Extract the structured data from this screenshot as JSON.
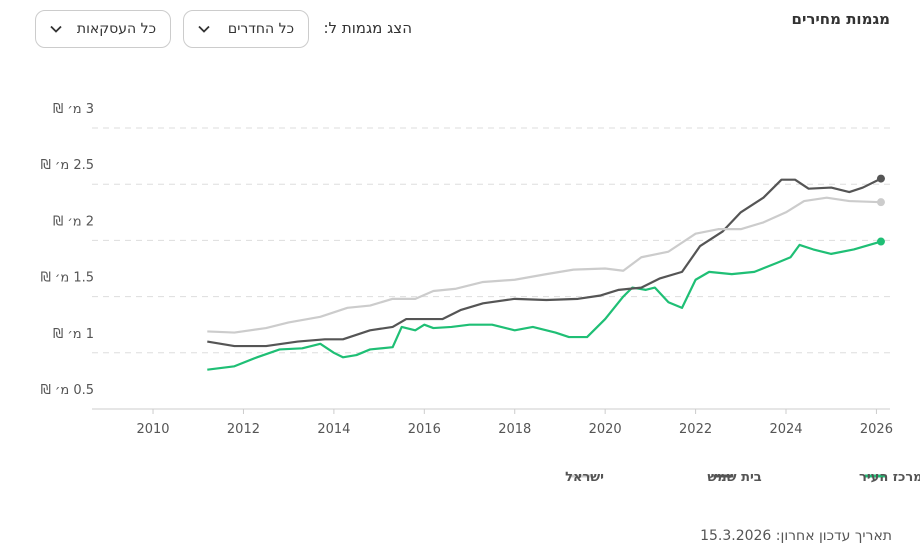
{
  "header": {
    "title": "מגמות מחירים",
    "filter_label": "הצג מגמות ל:",
    "rooms_dropdown": "כל החדרים",
    "deals_dropdown": "כל העסקאות"
  },
  "chart_data": {
    "type": "line",
    "xlim": [
      2008.65,
      2026.3
    ],
    "xticks": [
      2010,
      2012,
      2014,
      2016,
      2018,
      2020,
      2022,
      2024,
      2026
    ],
    "ylim": [
      0.5,
      3
    ],
    "yticks": [
      {
        "value": 0.5,
        "label": "0.5 מ׳ ₪"
      },
      {
        "value": 1,
        "label": "1 מ׳ ₪"
      },
      {
        "value": 1.5,
        "label": "1.5 מ׳ ₪"
      },
      {
        "value": 2,
        "label": "2 מ׳ ₪"
      },
      {
        "value": 2.5,
        "label": "2.5 מ׳ ₪"
      },
      {
        "value": 3,
        "label": "3 מ׳ ₪"
      }
    ],
    "grid": true,
    "series": [
      {
        "name": "מרכז העיר",
        "color": "#1fbf75",
        "x": [
          2011.2,
          2011.8,
          2012.3,
          2012.8,
          2013.3,
          2013.7,
          2014.0,
          2014.2,
          2014.5,
          2014.8,
          2015.3,
          2015.5,
          2015.8,
          2016.0,
          2016.2,
          2016.6,
          2017.0,
          2017.5,
          2018.0,
          2018.4,
          2018.9,
          2019.2,
          2019.6,
          2020.0,
          2020.4,
          2020.6,
          2020.9,
          2021.1,
          2021.4,
          2021.7,
          2022.0,
          2022.3,
          2022.8,
          2023.3,
          2023.8,
          2024.1,
          2024.3,
          2024.6,
          2025.0,
          2025.5,
          2026.1
        ],
        "values": [
          0.85,
          0.88,
          0.96,
          1.03,
          1.04,
          1.08,
          1.0,
          0.96,
          0.98,
          1.03,
          1.05,
          1.23,
          1.2,
          1.25,
          1.22,
          1.23,
          1.25,
          1.25,
          1.2,
          1.23,
          1.18,
          1.14,
          1.14,
          1.3,
          1.5,
          1.58,
          1.56,
          1.58,
          1.45,
          1.4,
          1.65,
          1.72,
          1.7,
          1.72,
          1.8,
          1.85,
          1.96,
          1.92,
          1.88,
          1.92,
          1.99
        ]
      },
      {
        "name": "בית שמש",
        "color": "#555555",
        "x": [
          2011.2,
          2011.8,
          2012.5,
          2013.2,
          2013.8,
          2014.2,
          2014.8,
          2015.3,
          2015.6,
          2016.0,
          2016.4,
          2016.8,
          2017.3,
          2018.0,
          2018.7,
          2019.4,
          2019.9,
          2020.3,
          2020.8,
          2021.2,
          2021.7,
          2022.1,
          2022.6,
          2023.0,
          2023.5,
          2023.9,
          2024.2,
          2024.5,
          2025.0,
          2025.4,
          2025.7,
          2026.1
        ],
        "values": [
          1.1,
          1.06,
          1.06,
          1.1,
          1.12,
          1.12,
          1.2,
          1.23,
          1.3,
          1.3,
          1.3,
          1.38,
          1.44,
          1.48,
          1.47,
          1.48,
          1.51,
          1.56,
          1.58,
          1.66,
          1.72,
          1.95,
          2.08,
          2.25,
          2.38,
          2.54,
          2.54,
          2.46,
          2.47,
          2.43,
          2.47,
          2.55
        ]
      },
      {
        "name": "ישראל",
        "color": "#cccccc",
        "x": [
          2011.2,
          2011.8,
          2012.5,
          2013.0,
          2013.7,
          2014.3,
          2014.8,
          2015.3,
          2015.8,
          2016.2,
          2016.7,
          2017.3,
          2018.0,
          2018.7,
          2019.3,
          2020.0,
          2020.4,
          2020.8,
          2021.4,
          2022.0,
          2022.5,
          2023.0,
          2023.5,
          2024.0,
          2024.4,
          2024.9,
          2025.4,
          2026.1
        ],
        "values": [
          1.19,
          1.18,
          1.22,
          1.27,
          1.32,
          1.4,
          1.42,
          1.48,
          1.48,
          1.55,
          1.57,
          1.63,
          1.65,
          1.7,
          1.74,
          1.75,
          1.73,
          1.85,
          1.9,
          2.06,
          2.1,
          2.1,
          2.16,
          2.25,
          2.35,
          2.38,
          2.35,
          2.34
        ]
      }
    ]
  },
  "footer": {
    "updated": "תאריך עדכון אחרון: 15.3.2026"
  }
}
